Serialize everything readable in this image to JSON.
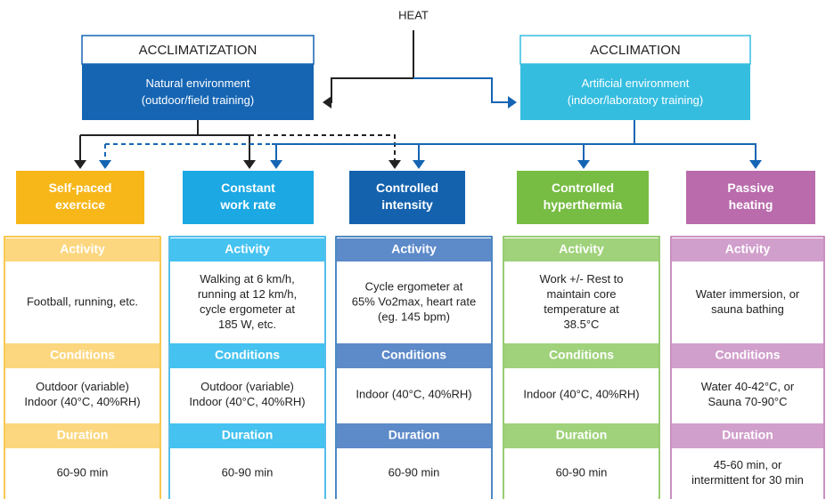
{
  "heat": "HEAT",
  "environments": [
    {
      "title": "ACCLIMATIZATION",
      "lines": [
        "Natural environment",
        "(outdoor/field training)"
      ]
    },
    {
      "title": "ACCLIMATION",
      "lines": [
        "Artificial environment",
        "(indoor/laboratory training)"
      ]
    }
  ],
  "row_headers": [
    "Activity",
    "Conditions",
    "Duration"
  ],
  "methods": [
    {
      "label": [
        "Self-paced",
        "exercice"
      ],
      "activity": [
        "Football, running, etc."
      ],
      "conditions": [
        "Outdoor (variable)",
        "Indoor (40°C, 40%RH)"
      ],
      "duration": [
        "60-90 min"
      ]
    },
    {
      "label": [
        "Constant",
        "work rate"
      ],
      "activity": [
        "Walking at 6 km/h,",
        "running at 12 km/h,",
        "cycle ergometer at",
        "185 W, etc."
      ],
      "conditions": [
        "Outdoor (variable)",
        "Indoor (40°C, 40%RH)"
      ],
      "duration": [
        "60-90 min"
      ]
    },
    {
      "label": [
        "Controlled",
        "intensity"
      ],
      "activity": [
        "Cycle ergometer at",
        "65% Vo2max, heart rate",
        "(eg. 145 bpm)"
      ],
      "conditions": [
        "Indoor (40°C, 40%RH)"
      ],
      "duration": [
        "60-90 min"
      ]
    },
    {
      "label": [
        "Controlled",
        "hyperthermia"
      ],
      "activity": [
        "Work +/- Rest to",
        "maintain core",
        "temperature at",
        "38.5°C"
      ],
      "conditions": [
        "Indoor (40°C, 40%RH)"
      ],
      "duration": [
        "60-90 min"
      ]
    },
    {
      "label": [
        "Passive",
        "heating"
      ],
      "activity": [
        "Water immersion, or",
        "sauna bathing"
      ],
      "conditions": [
        "Water 40-42°C, or",
        "Sauna 70-90°C"
      ],
      "duration": [
        "45-60 min, or",
        "intermittent for 30 min"
      ]
    }
  ]
}
